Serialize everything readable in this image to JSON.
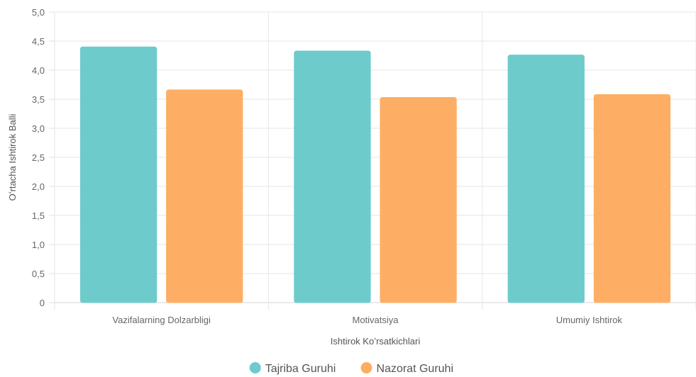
{
  "chart_data": {
    "type": "bar",
    "title": "",
    "xlabel": "Ishtirok Koʻrsatkichlari",
    "ylabel": "Oʻrtacha Ishtirok Balli",
    "categories": [
      "Vazifalarning Dolzarbligi",
      "Motivatsiya",
      "Umumiy Ishtirok"
    ],
    "series": [
      {
        "name": "Tajriba Guruhi",
        "values": [
          4.4,
          4.33,
          4.26
        ],
        "color": "#6ecbcb"
      },
      {
        "name": "Nazorat Guruhi",
        "values": [
          3.66,
          3.53,
          3.58
        ],
        "color": "#fdae64"
      }
    ],
    "ylim": [
      0,
      5
    ],
    "yticks": [
      "0",
      "0,5",
      "1,0",
      "1,5",
      "2,0",
      "2,5",
      "3,0",
      "3,5",
      "4,0",
      "4,5",
      "5,0"
    ],
    "grid": true,
    "legend_position": "bottom"
  }
}
